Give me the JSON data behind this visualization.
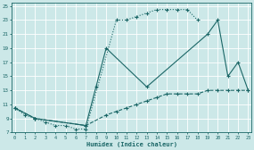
{
  "xlabel": "Humidex (Indice chaleur)",
  "bg_color": "#cce8e8",
  "grid_color": "#ffffff",
  "line_color": "#1a6666",
  "xlim": [
    -0.3,
    23.3
  ],
  "ylim": [
    7,
    25.5
  ],
  "xticks": [
    0,
    1,
    2,
    3,
    4,
    5,
    6,
    7,
    8,
    9,
    10,
    11,
    12,
    13,
    14,
    15,
    16,
    17,
    18,
    19,
    20,
    21,
    22,
    23
  ],
  "yticks": [
    7,
    9,
    11,
    13,
    15,
    17,
    19,
    21,
    23,
    25
  ],
  "curve1_x": [
    0,
    1,
    2,
    3,
    4,
    5,
    6,
    7,
    10,
    11,
    12,
    13,
    14,
    15,
    16,
    17,
    18
  ],
  "curve1_y": [
    10.5,
    9.5,
    9.0,
    8.5,
    8.0,
    8.0,
    7.5,
    7.5,
    23.0,
    23.0,
    23.5,
    24.0,
    24.5,
    24.5,
    24.5,
    24.5,
    23.0
  ],
  "curve1_dot": true,
  "curve2_x": [
    0,
    2,
    7,
    8,
    9,
    13,
    19,
    20,
    21,
    22,
    23
  ],
  "curve2_y": [
    10.5,
    9.0,
    8.0,
    13.5,
    19.0,
    13.5,
    21.0,
    23.0,
    15.0,
    17.0,
    13.0
  ],
  "curve2_dot": false,
  "curve3_x": [
    0,
    2,
    7,
    9,
    10,
    11,
    12,
    13,
    14,
    15,
    16,
    17,
    18,
    19,
    20,
    21,
    22,
    23
  ],
  "curve3_y": [
    10.5,
    9.0,
    8.0,
    9.5,
    10.0,
    10.5,
    11.0,
    11.5,
    12.0,
    12.5,
    12.5,
    12.5,
    12.5,
    13.0,
    13.0,
    13.0,
    13.0,
    13.0
  ],
  "curve3_dot": true
}
